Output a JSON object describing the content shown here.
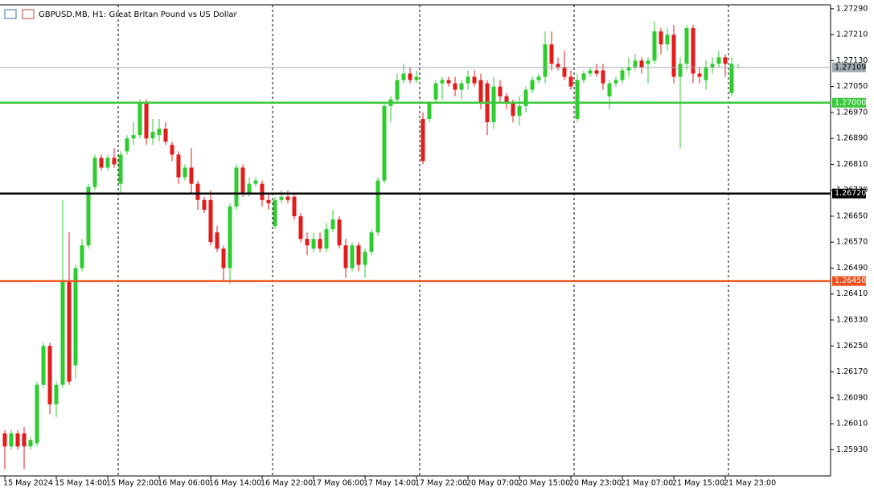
{
  "chart_data": {
    "type": "candlestick",
    "title": "GBPUSD.MB, H1:  Great Britan Pound vs US Dollar",
    "categories": [
      "15 May 2024",
      null,
      null,
      null,
      null,
      null,
      null,
      null,
      "15 May 14:00",
      null,
      null,
      null,
      null,
      null,
      null,
      null,
      "15 May 22:00",
      null,
      null,
      null,
      null,
      null,
      null,
      null,
      "16 May 06:00",
      null,
      null,
      null,
      null,
      null,
      null,
      null,
      "16 May 14:00",
      null,
      null,
      null,
      null,
      null,
      null,
      null,
      "16 May 22:00",
      null,
      null,
      null,
      null,
      null,
      null,
      null,
      "17 May 06:00",
      null,
      null,
      null,
      null,
      null,
      null,
      null,
      "17 May 14:00",
      null,
      null,
      null,
      null,
      null,
      null,
      null,
      "17 May 22:00",
      null,
      null,
      null,
      null,
      null,
      null,
      null,
      "20 May 07:00",
      null,
      null,
      null,
      null,
      null,
      null,
      null,
      "20 May 15:00",
      null,
      null,
      null,
      null,
      null,
      null,
      null,
      "20 May 23:00",
      null,
      null,
      null,
      null,
      null,
      null,
      null,
      "21 May 07:00",
      null,
      null,
      null,
      null,
      null,
      null,
      null,
      "21 May 15:00",
      null,
      null,
      null,
      null,
      null,
      null,
      null,
      "21 May 23:00",
      null,
      null
    ],
    "open": [
      1.2598,
      1.2594,
      1.2598,
      1.2598,
      1.2594,
      1.2595,
      1.2613,
      1.2625,
      1.2607,
      1.2613,
      1.2645,
      1.2619,
      1.2649,
      1.2656,
      1.2674,
      1.2683,
      1.268,
      1.2683,
      1.2675,
      1.2685,
      1.2689,
      1.269,
      1.27,
      1.2689,
      1.269,
      1.2692,
      1.2687,
      1.2684,
      1.2677,
      1.268,
      1.2675,
      1.267,
      1.267,
      1.266,
      1.2655,
      1.2649,
      1.2668,
      1.268,
      1.2672,
      1.2675,
      1.2675,
      1.267,
      1.2662,
      1.267,
      1.2671,
      1.2671,
      1.2665,
      1.2658,
      1.2655,
      1.2658,
      1.2655,
      1.2661,
      1.2664,
      1.2656,
      1.2649,
      1.2656,
      1.265,
      1.2654,
      1.266,
      1.2676,
      1.2699,
      1.2701,
      1.2707,
      1.2709,
      1.2707,
      1.2695,
      1.2695,
      1.2701,
      1.2706,
      1.2707,
      1.2706,
      1.2704,
      1.2706,
      1.2708,
      1.2707,
      1.2706,
      1.2694,
      1.2705,
      1.2702,
      1.27,
      1.2696,
      1.2699,
      1.2704,
      1.2707,
      1.2708,
      1.2718,
      1.2712,
      1.2711,
      1.2708,
      1.2695,
      1.2707,
      1.2709,
      1.271,
      1.271,
      1.2702,
      1.2706,
      1.2707,
      1.271,
      1.2711,
      1.2713,
      1.2712,
      1.2713,
      1.2722,
      1.2718,
      1.2721,
      1.2708,
      1.2712,
      1.2723,
      1.2709,
      1.2707,
      1.2711,
      1.2712,
      1.2714,
      1.2703,
      1.2711
    ],
    "high": [
      1.2599,
      1.2599,
      1.2599,
      1.26,
      1.2597,
      1.2614,
      1.2626,
      1.2626,
      1.2614,
      1.267,
      1.266,
      1.265,
      1.2658,
      1.2675,
      1.2684,
      1.2684,
      1.2684,
      1.2686,
      1.2685,
      1.269,
      1.2694,
      1.2701,
      1.2701,
      1.2695,
      1.2695,
      1.2694,
      1.2688,
      1.2685,
      1.2681,
      1.2686,
      1.2676,
      1.2671,
      1.2673,
      1.2662,
      1.2656,
      1.2669,
      1.2681,
      1.2681,
      1.2677,
      1.2677,
      1.2676,
      1.2672,
      1.2671,
      1.2673,
      1.2673,
      1.2672,
      1.2666,
      1.266,
      1.266,
      1.266,
      1.2663,
      1.2667,
      1.2665,
      1.2658,
      1.2657,
      1.2657,
      1.2655,
      1.2661,
      1.2677,
      1.27,
      1.2702,
      1.2709,
      1.2712,
      1.2711,
      1.271,
      1.2697,
      1.27,
      1.2707,
      1.2708,
      1.2708,
      1.2708,
      1.2707,
      1.271,
      1.271,
      1.2709,
      1.2707,
      1.2708,
      1.2707,
      1.2703,
      1.2701,
      1.2702,
      1.2705,
      1.2708,
      1.2709,
      1.2722,
      1.2722,
      1.2714,
      1.2716,
      1.271,
      1.2709,
      1.271,
      1.2711,
      1.2712,
      1.2712,
      1.2707,
      1.2708,
      1.2711,
      1.2714,
      1.2715,
      1.2714,
      1.2714,
      1.2725,
      1.2723,
      1.2723,
      1.2724,
      1.2714,
      1.2724,
      1.2724,
      1.2711,
      1.2713,
      1.2714,
      1.2716,
      1.2715,
      1.2714,
      1.2712
    ],
    "low": [
      1.2587,
      1.2593,
      1.2593,
      1.2587,
      1.2593,
      1.2594,
      1.2612,
      1.2604,
      1.2603,
      1.2612,
      1.2613,
      1.2615,
      1.2648,
      1.2655,
      1.2673,
      1.2679,
      1.2679,
      1.268,
      1.2672,
      1.2684,
      1.2687,
      1.2689,
      1.2687,
      1.2687,
      1.2688,
      1.2687,
      1.2682,
      1.2675,
      1.2676,
      1.2672,
      1.2667,
      1.2666,
      1.2656,
      1.2654,
      1.2645,
      1.2644,
      1.2667,
      1.2671,
      1.2671,
      1.2674,
      1.2668,
      1.2667,
      1.2661,
      1.2669,
      1.2669,
      1.2664,
      1.2657,
      1.2653,
      1.2654,
      1.2654,
      1.2654,
      1.266,
      1.2655,
      1.2646,
      1.2648,
      1.2648,
      1.2646,
      1.2653,
      1.2659,
      1.2675,
      1.2694,
      1.27,
      1.2706,
      1.2706,
      1.2706,
      1.2681,
      1.2694,
      1.27,
      1.2701,
      1.2705,
      1.2702,
      1.2701,
      1.2704,
      1.2705,
      1.2698,
      1.269,
      1.2692,
      1.27,
      1.2698,
      1.2694,
      1.2693,
      1.2697,
      1.2703,
      1.2706,
      1.2706,
      1.271,
      1.271,
      1.2707,
      1.2704,
      1.2694,
      1.2706,
      1.2708,
      1.2708,
      1.2704,
      1.2698,
      1.2705,
      1.2706,
      1.2708,
      1.271,
      1.2709,
      1.2706,
      1.2712,
      1.2715,
      1.2716,
      1.2706,
      1.2686,
      1.271,
      1.2706,
      1.2706,
      1.2704,
      1.2709,
      1.2711,
      1.2708,
      1.2702,
      1.2711
    ],
    "close": [
      1.2594,
      1.2598,
      1.2594,
      1.2594,
      1.2596,
      1.2613,
      1.2625,
      1.2607,
      1.2613,
      1.2645,
      1.2614,
      1.2649,
      1.2656,
      1.2674,
      1.2683,
      1.268,
      1.2683,
      1.2681,
      1.2684,
      1.2689,
      1.269,
      1.27,
      1.2689,
      1.2691,
      1.2692,
      1.2688,
      1.2684,
      1.2677,
      1.268,
      1.2675,
      1.267,
      1.2667,
      1.2657,
      1.2655,
      1.2649,
      1.2668,
      1.268,
      1.2672,
      1.2675,
      1.2676,
      1.267,
      1.2669,
      1.267,
      1.2671,
      1.267,
      1.2665,
      1.2658,
      1.2656,
      1.2658,
      1.2655,
      1.2661,
      1.2664,
      1.2656,
      1.2649,
      1.2656,
      1.265,
      1.2654,
      1.266,
      1.2676,
      1.2699,
      1.2701,
      1.2707,
      1.2709,
      1.2707,
      1.2708,
      1.2682,
      1.27,
      1.2706,
      1.2707,
      1.2706,
      1.2704,
      1.2706,
      1.2708,
      1.2706,
      1.27,
      1.2694,
      1.2705,
      1.2702,
      1.27,
      1.2696,
      1.2699,
      1.2704,
      1.2707,
      1.2708,
      1.2718,
      1.2712,
      1.2711,
      1.2708,
      1.2705,
      1.2707,
      1.2709,
      1.271,
      1.2709,
      1.2706,
      1.2706,
      1.2707,
      1.271,
      1.2711,
      1.2713,
      1.2711,
      1.2713,
      1.2722,
      1.2718,
      1.2721,
      1.2708,
      1.2712,
      1.2723,
      1.2709,
      1.2708,
      1.2711,
      1.2712,
      1.2714,
      1.2712,
      1.2712,
      1.2711
    ],
    "up_color": "#2ecc2e",
    "down_color": "#e21b1b",
    "ylim": [
      1.25849,
      1.27302
    ],
    "yticks": [
      {
        "value": 1.2729,
        "label": "1.27290"
      },
      {
        "value": 1.2721,
        "label": "1.27210"
      },
      {
        "value": 1.2713,
        "label": "1.27130"
      },
      {
        "value": 1.2705,
        "label": "1.27050"
      },
      {
        "value": 1.2697,
        "label": "1.26970"
      },
      {
        "value": 1.2689,
        "label": "1.26890"
      },
      {
        "value": 1.2681,
        "label": "1.26810"
      },
      {
        "value": 1.2673,
        "label": "1.26730"
      },
      {
        "value": 1.2665,
        "label": "1.26650"
      },
      {
        "value": 1.2657,
        "label": "1.26570"
      },
      {
        "value": 1.2649,
        "label": "1.26490"
      },
      {
        "value": 1.2641,
        "label": "1.26410"
      },
      {
        "value": 1.2633,
        "label": "1.26330"
      },
      {
        "value": 1.2625,
        "label": "1.26250"
      },
      {
        "value": 1.2617,
        "label": "1.26170"
      },
      {
        "value": 1.2609,
        "label": "1.26090"
      },
      {
        "value": 1.2601,
        "label": "1.26010"
      },
      {
        "value": 1.2593,
        "label": "1.25930"
      }
    ],
    "levels": [
      {
        "value": 1.27109,
        "label": "1.27109",
        "color": "#a0a8b0",
        "width": 1
      },
      {
        "value": 1.27,
        "label": "1.27000",
        "color": "#3cc83c",
        "width": 2.5
      },
      {
        "value": 1.2672,
        "label": "1.26720",
        "color": "#000000",
        "width": 2.5
      },
      {
        "value": 1.2645,
        "label": "1.26450",
        "color": "#f0501e",
        "width": 2.5
      }
    ]
  }
}
